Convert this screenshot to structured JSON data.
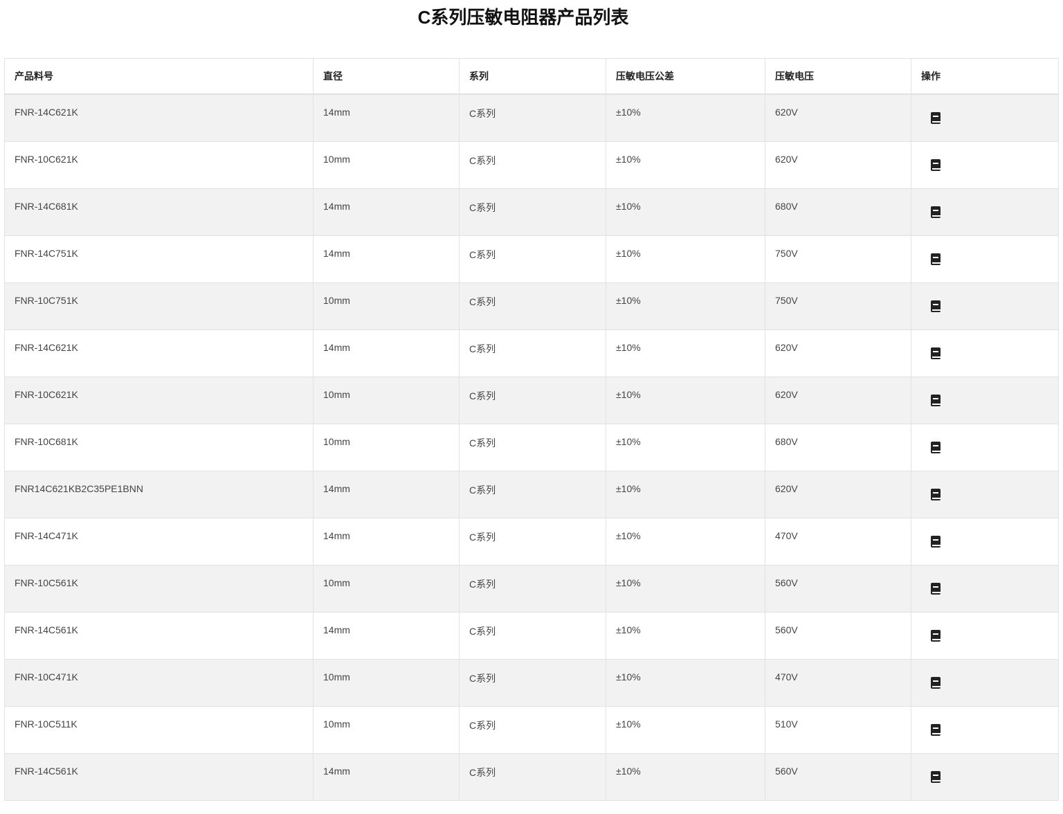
{
  "title": "C系列压敏电阻器产品列表",
  "columns": [
    "产品料号",
    "直径",
    "系列",
    "压敏电压公差",
    "压敏电压",
    "操作"
  ],
  "action_icon": "book-icon",
  "rows": [
    [
      "FNR-14C621K",
      "14mm",
      "C系列",
      "±10%",
      "620V"
    ],
    [
      "FNR-10C621K",
      "10mm",
      "C系列",
      "±10%",
      "620V"
    ],
    [
      "FNR-14C681K",
      "14mm",
      "C系列",
      "±10%",
      "680V"
    ],
    [
      "FNR-14C751K",
      "14mm",
      "C系列",
      "±10%",
      "750V"
    ],
    [
      "FNR-10C751K",
      "10mm",
      "C系列",
      "±10%",
      "750V"
    ],
    [
      "FNR-14C621K",
      "14mm",
      "C系列",
      "±10%",
      "620V"
    ],
    [
      "FNR-10C621K",
      "10mm",
      "C系列",
      "±10%",
      "620V"
    ],
    [
      "FNR-10C681K",
      "10mm",
      "C系列",
      "±10%",
      "680V"
    ],
    [
      "FNR14C621KB2C35PE1BNN",
      "14mm",
      "C系列",
      "±10%",
      "620V"
    ],
    [
      "FNR-14C471K",
      "14mm",
      "C系列",
      "±10%",
      "470V"
    ],
    [
      "FNR-10C561K",
      "10mm",
      "C系列",
      "±10%",
      "560V"
    ],
    [
      "FNR-14C561K",
      "14mm",
      "C系列",
      "±10%",
      "560V"
    ],
    [
      "FNR-10C471K",
      "10mm",
      "C系列",
      "±10%",
      "470V"
    ],
    [
      "FNR-10C511K",
      "10mm",
      "C系列",
      "±10%",
      "510V"
    ],
    [
      "FNR-14C561K",
      "14mm",
      "C系列",
      "±10%",
      "560V"
    ]
  ]
}
